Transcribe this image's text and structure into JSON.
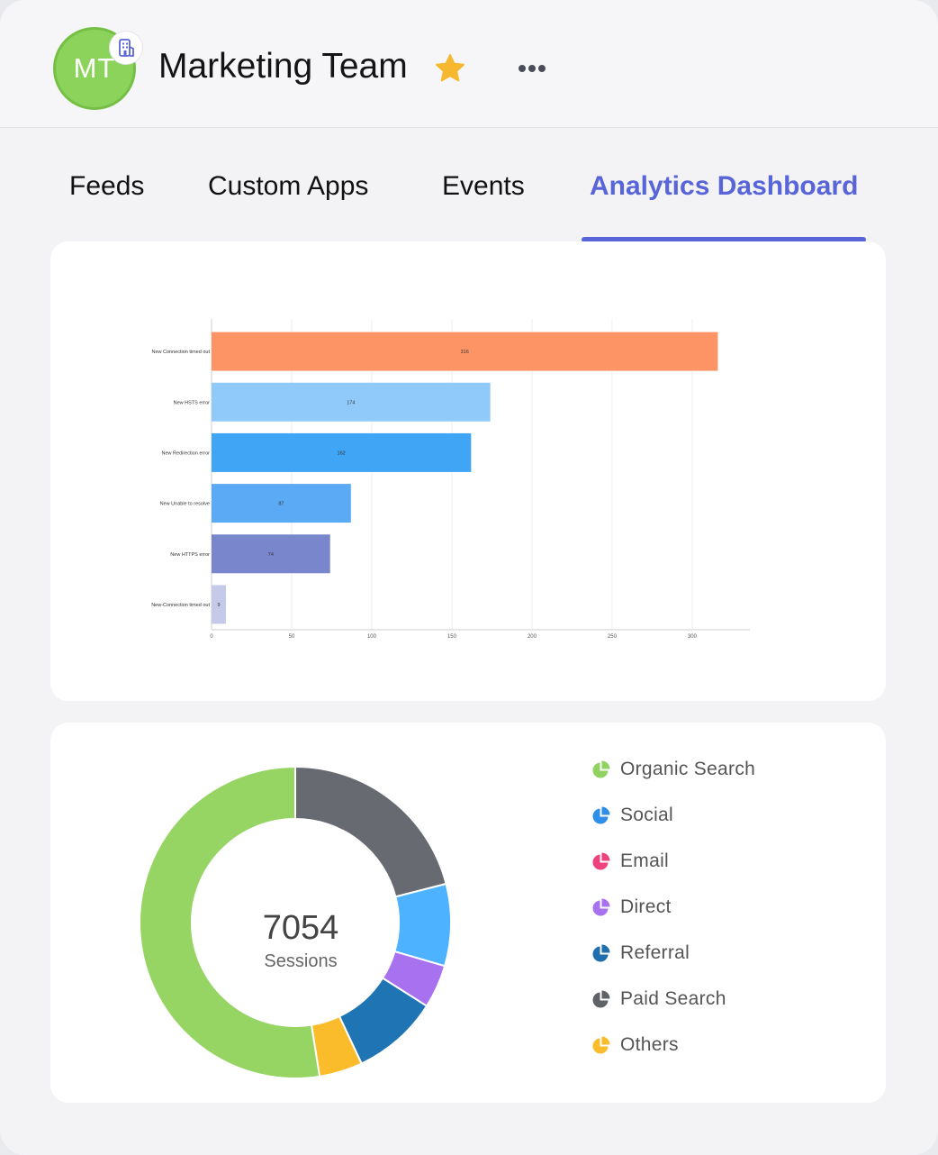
{
  "header": {
    "avatar_initials": "MT",
    "team_name": "Marketing Team",
    "org_badge_icon": "building-icon",
    "favorite_icon": "star-icon",
    "more_icon": "more-horizontal-icon",
    "avatar_color": "#8bd35b",
    "star_color": "#f5b82e"
  },
  "tabs": [
    {
      "label": "Feeds"
    },
    {
      "label": "Custom Apps"
    },
    {
      "label": "Events"
    },
    {
      "label": "Analytics Dashboard",
      "active": true
    }
  ],
  "accent_color": "#5865d8",
  "chart_data": [
    {
      "type": "bar",
      "orientation": "horizontal",
      "categories": [
        "New Connection timed out",
        "New HSTS error",
        "New Redirection error",
        "New Unable to resolve",
        "New HTTPS error",
        "New-Connection timed out"
      ],
      "values": [
        316,
        174,
        162,
        87,
        74,
        9
      ],
      "colors": [
        "#fd9466",
        "#90cafa",
        "#41a5f5",
        "#5aaaf6",
        "#7986cb",
        "#c5cae9"
      ],
      "xlim": [
        0,
        336
      ],
      "xticks": [
        0,
        50,
        100,
        150,
        200,
        250,
        300
      ],
      "grid": true,
      "data_labels": true
    },
    {
      "type": "pie",
      "variant": "donut",
      "center_value": "7054",
      "center_label": "Sessions",
      "slices": [
        {
          "name": "Paid Search",
          "value": 21,
          "color": "#676a71"
        },
        {
          "name": "Social",
          "value": 8.5,
          "color": "#4db2ff"
        },
        {
          "name": "Direct",
          "value": 4.5,
          "color": "#a871f0"
        },
        {
          "name": "Referral",
          "value": 9,
          "color": "#1f75b3"
        },
        {
          "name": "Others",
          "value": 4.5,
          "color": "#fbbc2c"
        },
        {
          "name": "Organic Search",
          "value": 52.5,
          "color": "#96d463"
        }
      ],
      "legend": [
        {
          "name": "Organic Search",
          "color": "#8fd260"
        },
        {
          "name": "Social",
          "color": "#2f8fe8"
        },
        {
          "name": "Email",
          "color": "#f0417f"
        },
        {
          "name": "Direct",
          "color": "#a871f0"
        },
        {
          "name": "Referral",
          "color": "#1f6fae"
        },
        {
          "name": "Paid Search",
          "color": "#5f6168"
        },
        {
          "name": "Others",
          "color": "#fbbc2c"
        }
      ],
      "legend_position": "right"
    }
  ]
}
